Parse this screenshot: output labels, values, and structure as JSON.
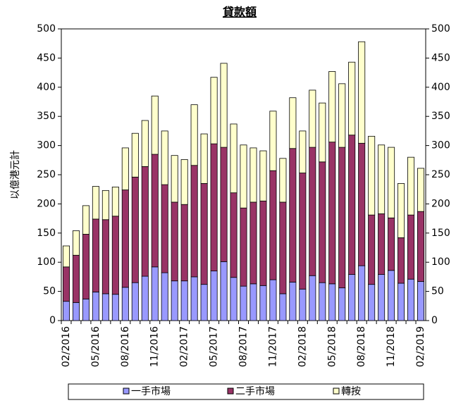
{
  "chart_data": {
    "type": "stacked-bar",
    "title": "貸款額",
    "y_label": "以億港元計",
    "categories": [
      "02/2016",
      null,
      null,
      "05/2016",
      null,
      null,
      "08/2016",
      null,
      null,
      "11/2016",
      null,
      null,
      "02/2017",
      null,
      null,
      "05/2017",
      null,
      null,
      "08/2017",
      null,
      null,
      "11/2017",
      null,
      null,
      "02/2018",
      null,
      null,
      "05/2018",
      null,
      null,
      "08/2018",
      null,
      null,
      "11/2018",
      null,
      null,
      "02/2019"
    ],
    "series": [
      {
        "name": "一手市場",
        "color": "#9999ff",
        "values": [
          33,
          31,
          37,
          49,
          46,
          45,
          57,
          65,
          76,
          92,
          82,
          68,
          68,
          75,
          62,
          85,
          101,
          74,
          59,
          63,
          60,
          70,
          46,
          66,
          54,
          77,
          65,
          63,
          56,
          79,
          94,
          62,
          79,
          86,
          64,
          71,
          67
        ]
      },
      {
        "name": "二手市場",
        "color": "#993366",
        "values": [
          59,
          81,
          111,
          125,
          127,
          134,
          167,
          181,
          188,
          193,
          151,
          135,
          131,
          191,
          173,
          218,
          196,
          145,
          134,
          140,
          145,
          187,
          157,
          229,
          199,
          220,
          207,
          243,
          241,
          239,
          210,
          119,
          104,
          90,
          78,
          110,
          120
        ]
      },
      {
        "name": "轉按",
        "color": "#ffffcc",
        "values": [
          36,
          42,
          49,
          56,
          50,
          50,
          72,
          75,
          79,
          100,
          92,
          80,
          77,
          104,
          85,
          114,
          144,
          118,
          108,
          93,
          86,
          102,
          75,
          87,
          72,
          98,
          101,
          121,
          109,
          125,
          174,
          135,
          118,
          121,
          93,
          99,
          74
        ]
      }
    ],
    "ylim": [
      0,
      500
    ],
    "yticks": [
      0,
      50,
      100,
      150,
      200,
      250,
      300,
      350,
      400,
      450,
      500
    ]
  }
}
